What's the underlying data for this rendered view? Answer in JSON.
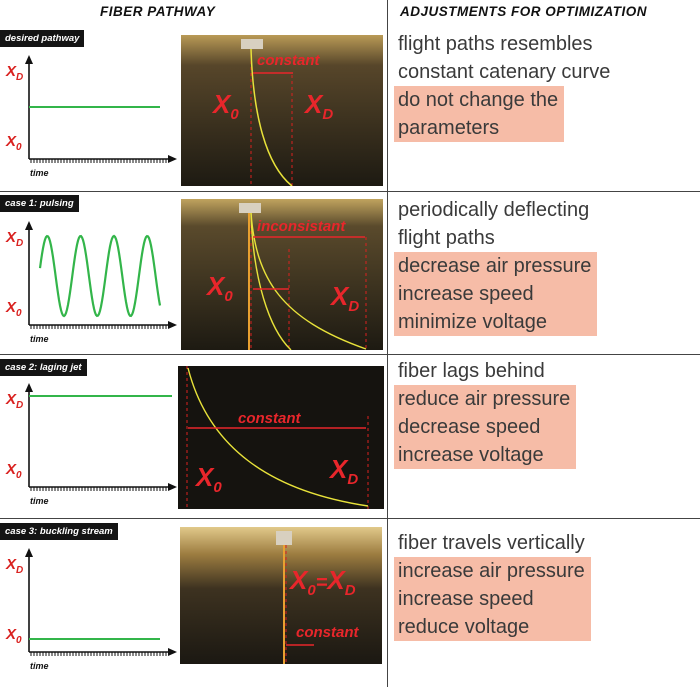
{
  "headers": {
    "left": "FIBER PATHWAY",
    "right": "ADJUSTMENTS FOR OPTIMIZATION"
  },
  "plot_labels": {
    "xd": "X",
    "xd_sub": "D",
    "x0": "X",
    "x0_sub": "0",
    "time": "time"
  },
  "rows": [
    {
      "case": "desired pathway",
      "photo_label_1": "constant",
      "photo_x0": "X",
      "photo_x0_sub": "0",
      "photo_xd": "X",
      "photo_xd_sub": "D",
      "description": [
        "flight paths resembles",
        "constant catenary curve"
      ],
      "adjustments": [
        "do not change the",
        "parameters"
      ]
    },
    {
      "case": "case 1: pulsing",
      "photo_label_1": "inconsistant",
      "photo_x0": "X",
      "photo_x0_sub": "0",
      "photo_xd": "X",
      "photo_xd_sub": "D",
      "description": [
        "periodically deflecting",
        "flight paths"
      ],
      "adjustments": [
        "decrease air pressure",
        "increase speed",
        "minimize voltage"
      ]
    },
    {
      "case": "case 2: laging jet",
      "photo_label_1": "constant",
      "photo_x0": "X",
      "photo_x0_sub": "0",
      "photo_xd": "X",
      "photo_xd_sub": "D",
      "description": [
        "fiber lags behind"
      ],
      "adjustments": [
        "reduce air pressure",
        "decrease speed",
        "increase voltage"
      ]
    },
    {
      "case": "case 3: buckling stream",
      "photo_label_1": "constant",
      "photo_eq_x0": "X",
      "photo_eq_x0_sub": "0",
      "photo_eq": "=",
      "photo_eq_xd": "X",
      "photo_eq_xd_sub": "D",
      "description": [
        "fiber travels vertically"
      ],
      "adjustments": [
        "increase air pressure",
        "increase speed",
        "reduce voltage"
      ]
    }
  ],
  "colors": {
    "signal": "#33b54a",
    "label_red": "#d9211f",
    "highlight": "#f6bca7",
    "fiber": "#e8e23a"
  }
}
